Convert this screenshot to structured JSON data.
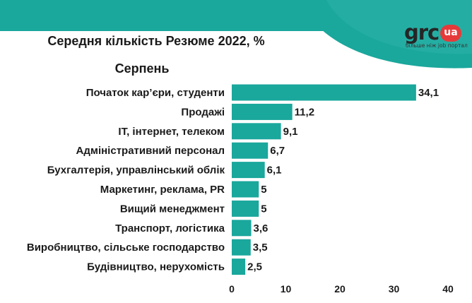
{
  "brand": {
    "logo_word": "grc",
    "logo_badge": "ua",
    "tagline": "більше ніж job портал",
    "band_color": "#1aa79c",
    "accent_color": "#e63a3a"
  },
  "chart_data": {
    "type": "bar",
    "orientation": "horizontal",
    "title": "Середня кількість Резюме 2022, %",
    "subtitle": "Серпень",
    "categories": [
      "Початок кар’єри, студенти",
      "Продажі",
      "IT, інтернет, телеком",
      "Адміністративний персонал",
      "Бухгалтерія, управлінський облік",
      "Маркетинг, реклама, PR",
      "Вищий менеджмент",
      "Транспорт, логістика",
      "Виробництво, сільське господарство",
      "Будівництво, нерухомість"
    ],
    "values": [
      34.1,
      11.2,
      9.1,
      6.7,
      6.1,
      5,
      5,
      3.6,
      3.5,
      2.5
    ],
    "value_labels": [
      "34,1",
      "11,2",
      "9,1",
      "6,7",
      "6,1",
      "5",
      "5",
      "3,6",
      "3,5",
      "2,5"
    ],
    "xlim": [
      0,
      40
    ],
    "xticks": [
      "0",
      "10",
      "20",
      "30",
      "40"
    ],
    "xlabel": "",
    "ylabel": "",
    "grid": false,
    "legend": "none",
    "bar_color": "#1aa79c"
  }
}
